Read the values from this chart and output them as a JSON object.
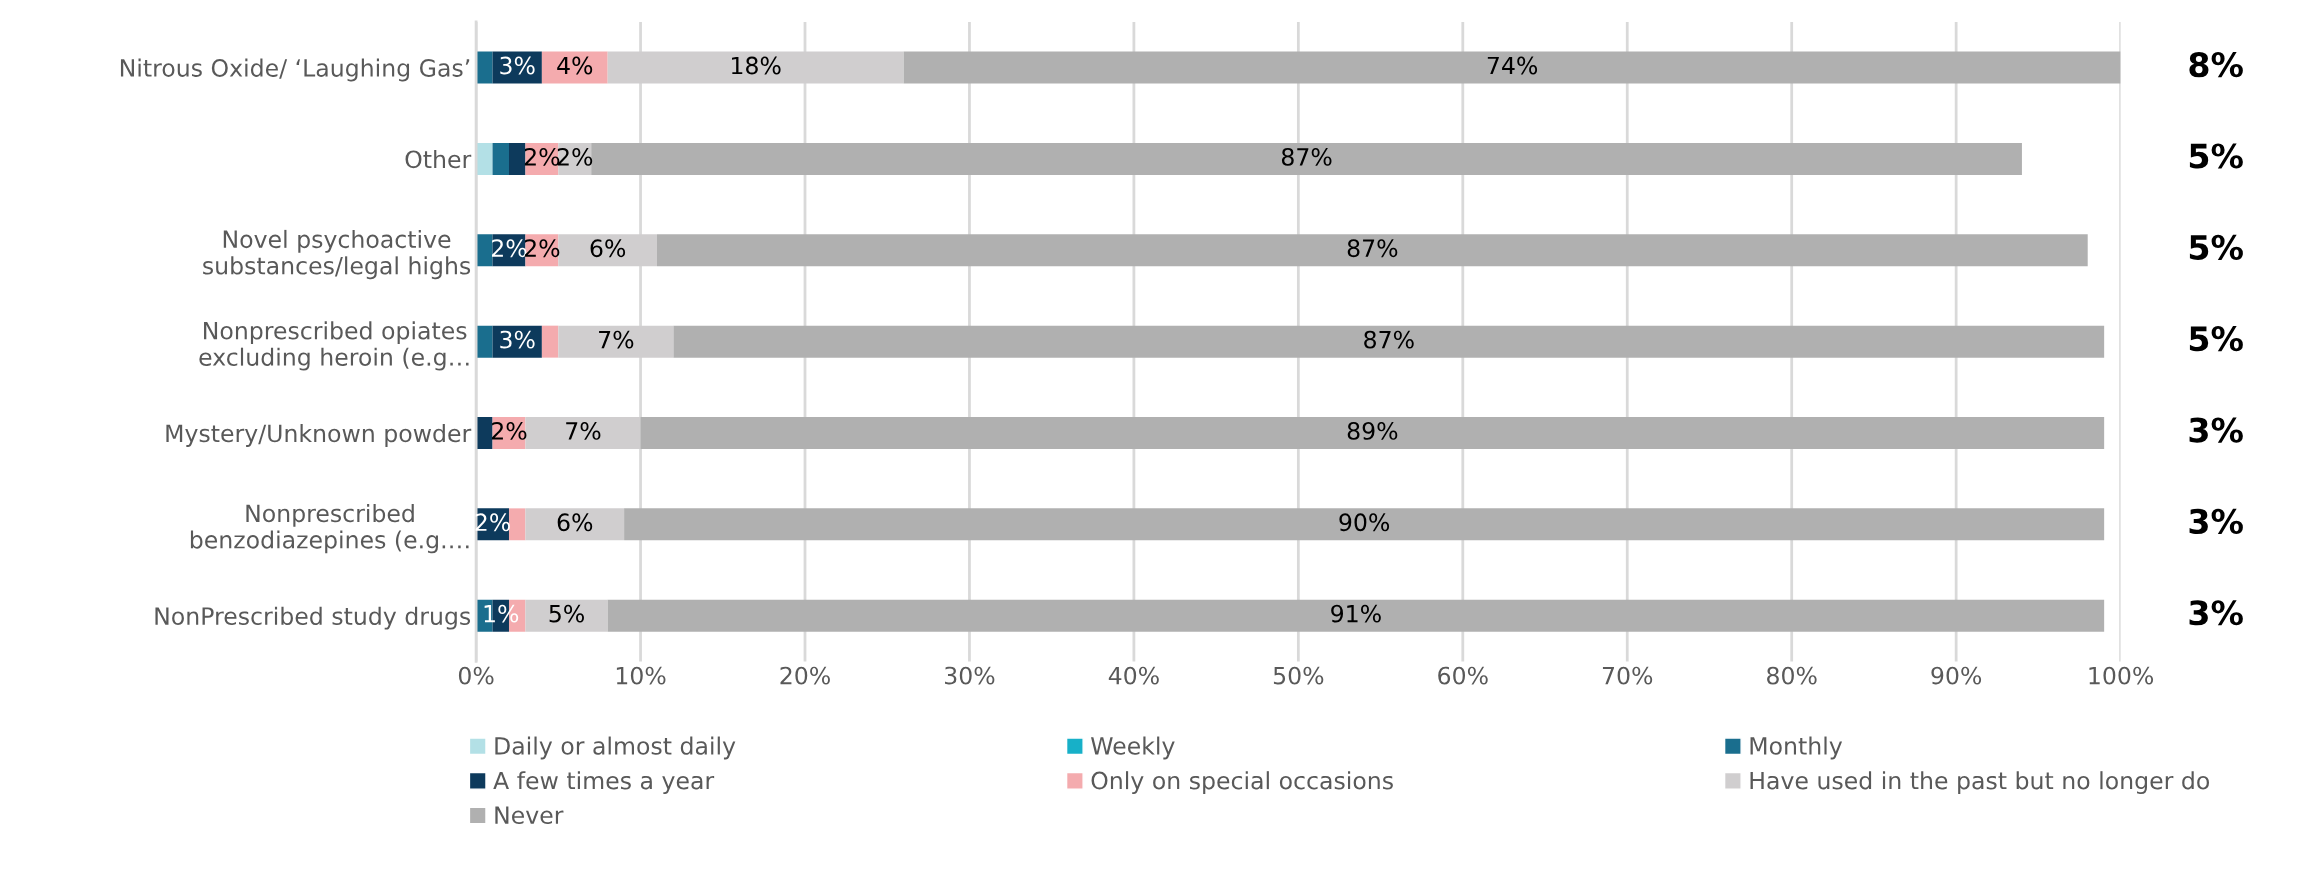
{
  "chart_data": {
    "type": "bar",
    "orientation": "horizontal",
    "stacked": true,
    "categories": [
      "Nitrous Oxide/ ‘Laughing Gas’",
      "Other",
      "Novel psychoactive\nsubstances/legal highs",
      "Nonprescribed opiates\nexcluding heroin (e.g…",
      "Mystery/Unknown powder",
      "Nonprescribed\nbenzodiazepines (e.g.…",
      "NonPrescribed study drugs"
    ],
    "series": [
      {
        "name": "Daily or almost daily",
        "color": "#b3e0e6",
        "values": [
          0,
          1,
          0,
          0,
          0,
          0,
          0
        ],
        "value_labels": [
          null,
          null,
          null,
          null,
          null,
          null,
          null
        ]
      },
      {
        "name": "Weekly",
        "color": "#17b0c8",
        "values": [
          0,
          0,
          0,
          0,
          0,
          0,
          0
        ],
        "value_labels": [
          null,
          null,
          null,
          null,
          null,
          null,
          null
        ]
      },
      {
        "name": "Monthly",
        "color": "#1a6e8e",
        "values": [
          1,
          1,
          1,
          1,
          0,
          0,
          1
        ],
        "value_labels": [
          null,
          null,
          null,
          null,
          null,
          null,
          null
        ]
      },
      {
        "name": "A few times a year",
        "color": "#0d3a5c",
        "values": [
          3,
          1,
          2,
          3,
          1,
          2,
          1
        ],
        "value_labels": [
          "3%",
          null,
          "2%",
          "3%",
          null,
          "2%",
          "1%"
        ]
      },
      {
        "name": "Only on special occasions",
        "color": "#f4abae",
        "values": [
          4,
          2,
          2,
          1,
          2,
          1,
          1
        ],
        "value_labels": [
          "4%",
          "2%",
          "2%",
          null,
          "2%",
          null,
          null
        ]
      },
      {
        "name": "Have used in the past but no longer do",
        "color": "#d0cecf",
        "values": [
          18,
          2,
          6,
          7,
          7,
          6,
          5
        ],
        "value_labels": [
          "18%",
          "2%",
          "6%",
          "7%",
          "7%",
          "6%",
          "5%"
        ]
      },
      {
        "name": "Never",
        "color": "#b0b0b0",
        "values": [
          74,
          87,
          87,
          87,
          89,
          90,
          91
        ],
        "value_labels": [
          "74%",
          "87%",
          "87%",
          "87%",
          "89%",
          "90%",
          "91%"
        ]
      }
    ],
    "xlim": [
      0,
      100
    ],
    "xticks": [
      {
        "value": 0,
        "label": "0%"
      },
      {
        "value": 10,
        "label": "10%"
      },
      {
        "value": 20,
        "label": "20%"
      },
      {
        "value": 30,
        "label": "30%"
      },
      {
        "value": 40,
        "label": "40%"
      },
      {
        "value": 50,
        "label": "50%"
      },
      {
        "value": 60,
        "label": "60%"
      },
      {
        "value": 70,
        "label": "70%"
      },
      {
        "value": 80,
        "label": "80%"
      },
      {
        "value": 90,
        "label": "90%"
      },
      {
        "value": 100,
        "label": "100%"
      }
    ],
    "grid": "x",
    "legend": "bottom",
    "annotations": [
      "8%",
      "5%",
      "5%",
      "5%",
      "3%",
      "3%",
      "3%"
    ]
  }
}
